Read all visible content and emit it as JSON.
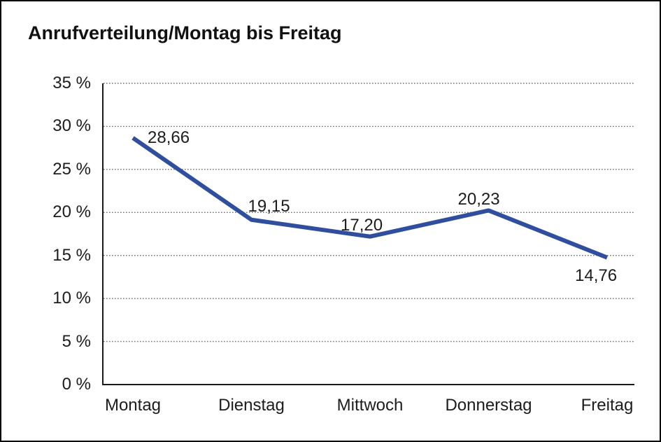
{
  "window": {
    "title": "Anrufverteilung/Montag bis Freitag"
  },
  "chart_data": {
    "type": "line",
    "title": "Anrufverteilung/Montag bis Freitag",
    "categories": [
      "Montag",
      "Dienstag",
      "Mittwoch",
      "Donnerstag",
      "Freitag"
    ],
    "values": [
      28.66,
      19.15,
      17.2,
      20.23,
      14.76
    ],
    "point_labels": [
      "28,66",
      "19,15",
      "17,20",
      "20,23",
      "14,76"
    ],
    "y_ticks": [
      35,
      30,
      25,
      20,
      15,
      10,
      5,
      0
    ],
    "y_tick_labels": [
      "35 %",
      "30 %",
      "25 %",
      "20 %",
      "15 %",
      "10 %",
      "5 %",
      "0 %"
    ],
    "ylim": [
      0,
      35
    ],
    "xlabel": "",
    "ylabel": "",
    "legend": "none",
    "grid": "horizontal-dotted",
    "line_color": "#2F4F9E",
    "axis_color": "#1a1a1a",
    "grid_color": "#6e6e6e",
    "background_color": "#ffffff"
  }
}
